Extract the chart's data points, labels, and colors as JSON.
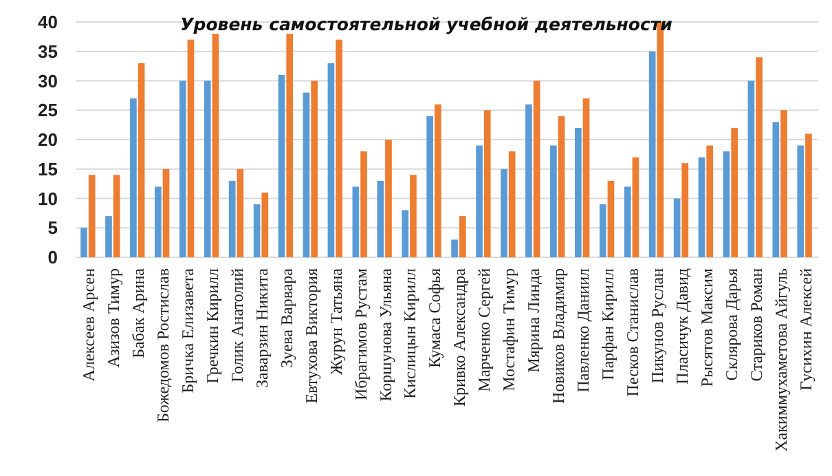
{
  "chart_data": {
    "type": "bar",
    "title": "Уровень самостоятельной учебной деятельности",
    "categories": [
      "Алексеев Арсен",
      "Азизов Тимур",
      "Бабак Арина",
      "Божедомов Ростислав",
      "Бричка Елизавета",
      "Гречкин Кирилл",
      "Голик Анатолий",
      "Заварзин Никита",
      "Зуева Варвара",
      "Евтухова Виктория",
      "Журун Татьяна",
      "Ибрагимов Рустам",
      "Коршунова Ульяна",
      "Кислицын Кирилл",
      "Кумаса Софья",
      "Кривко Александра",
      "Марченко Сергей",
      "Мостафин Тимур",
      "Мярина Линда",
      "Новиков Владимир",
      "Павленко Даниил",
      "Парфан Кирилл",
      "Песков Станислав",
      "Пикунов Руслан",
      "Пласичук Давид",
      "Рысятов Максим",
      "Склярова Дарья",
      "Стариков Роман",
      "Хакиммухаметова Айгуль",
      "Гусихин Алексей"
    ],
    "series": [
      {
        "color": "#5b9bd5",
        "values": [
          5,
          7,
          27,
          12,
          30,
          30,
          13,
          9,
          31,
          28,
          33,
          12,
          13,
          8,
          24,
          3,
          19,
          15,
          26,
          19,
          22,
          9,
          12,
          35,
          10,
          17,
          18,
          30,
          23,
          19
        ]
      },
      {
        "color": "#ed7d31",
        "values": [
          14,
          14,
          33,
          15,
          37,
          38,
          15,
          11,
          38,
          30,
          37,
          18,
          20,
          14,
          26,
          7,
          25,
          18,
          30,
          24,
          27,
          13,
          17,
          40,
          16,
          19,
          22,
          34,
          25,
          21
        ]
      }
    ],
    "ylim": [
      0,
      40
    ],
    "yticks": [
      0,
      5,
      10,
      15,
      20,
      25,
      30,
      35,
      40
    ],
    "grid": "y"
  }
}
